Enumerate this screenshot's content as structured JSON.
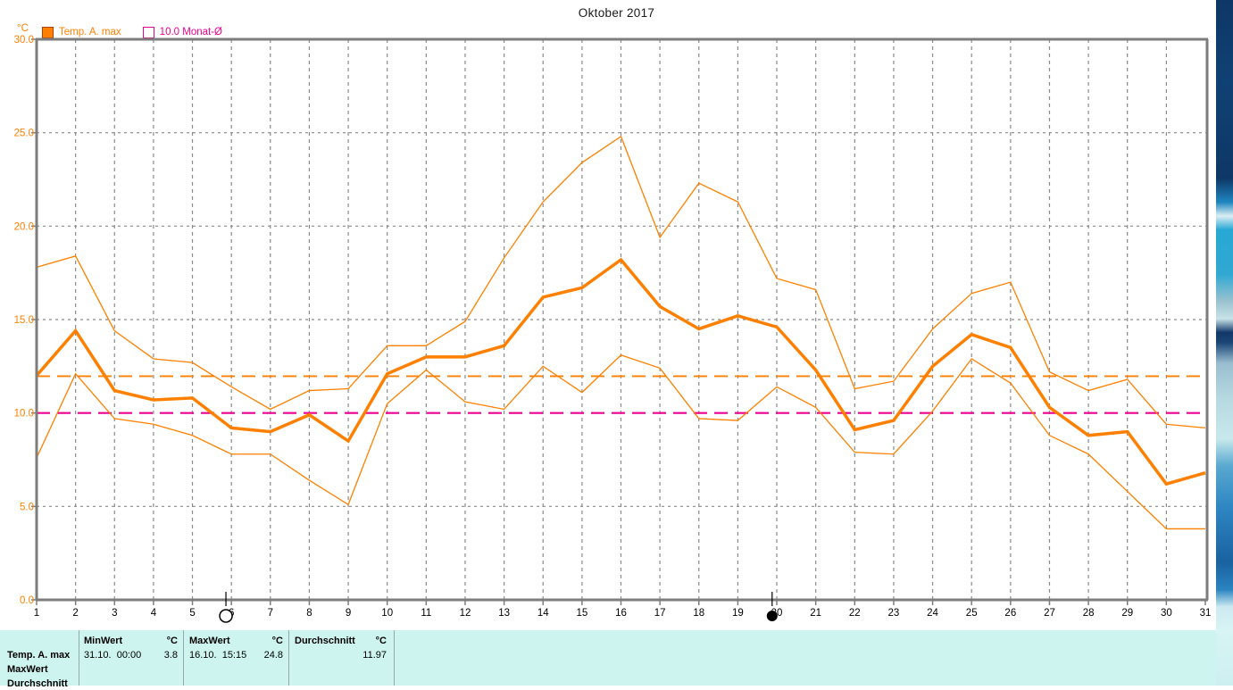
{
  "title": "Oktober 2017",
  "legend": {
    "unit_label": "°C",
    "series1": {
      "label": "Temp. A. max",
      "color": "#ff8000"
    },
    "series2": {
      "label": "10.0 Monat-Ø",
      "color": "#ec0090"
    }
  },
  "chart_data": {
    "type": "line",
    "title": "Oktober 2017",
    "ylabel": "°C",
    "ylim": [
      0,
      30
    ],
    "grid": true,
    "yticks": [
      30,
      25,
      20,
      15,
      10,
      5,
      0
    ],
    "ytick_labels": [
      "30.0",
      "25.0",
      "20.0",
      "15.0",
      "10.0",
      "5.0",
      "0.0"
    ],
    "x": [
      1,
      2,
      3,
      4,
      5,
      6,
      7,
      8,
      9,
      10,
      11,
      12,
      13,
      14,
      15,
      16,
      17,
      18,
      19,
      20,
      21,
      22,
      23,
      24,
      25,
      26,
      27,
      28,
      29,
      30,
      31
    ],
    "series": [
      {
        "name": "daily-max",
        "color": "#ff8000",
        "width": 1.3,
        "values": [
          17.8,
          18.4,
          14.4,
          12.9,
          12.7,
          11.4,
          10.2,
          11.2,
          11.3,
          13.6,
          13.6,
          14.9,
          18.3,
          21.3,
          23.4,
          24.8,
          19.4,
          22.3,
          21.3,
          17.2,
          16.6,
          11.3,
          11.7,
          14.5,
          16.4,
          17.0,
          12.2,
          11.2,
          11.8,
          9.4,
          9.2
        ]
      },
      {
        "name": "temp-a-max-mean",
        "color": "#ff8000",
        "width": 3.5,
        "values": [
          12.0,
          14.4,
          11.2,
          10.7,
          10.8,
          9.2,
          9.0,
          9.9,
          8.5,
          12.1,
          13.0,
          13.0,
          13.6,
          16.2,
          16.7,
          18.2,
          15.7,
          14.5,
          15.2,
          14.6,
          12.3,
          9.1,
          9.6,
          12.5,
          14.2,
          13.5,
          10.3,
          8.8,
          9.0,
          6.2,
          6.8
        ]
      },
      {
        "name": "daily-min",
        "color": "#ff8000",
        "width": 1.3,
        "values": [
          7.6,
          12.1,
          9.7,
          9.4,
          8.8,
          7.8,
          7.8,
          6.4,
          5.1,
          10.5,
          12.3,
          10.6,
          10.2,
          12.5,
          11.1,
          13.1,
          12.4,
          9.7,
          9.6,
          11.4,
          10.3,
          7.9,
          7.8,
          10.1,
          12.9,
          11.6,
          8.8,
          7.8,
          5.8,
          3.8,
          3.8
        ]
      }
    ],
    "reference_lines": [
      {
        "name": "monats-durchschnitt",
        "value": 11.97,
        "color": "#ff8000",
        "width": 1.8
      },
      {
        "name": "10.0-monat-soll",
        "value": 10.0,
        "color": "#ec0090",
        "width": 2.2
      }
    ],
    "moon_markers": [
      {
        "day": 5.86,
        "phase": "full-moon"
      },
      {
        "day": 19.88,
        "phase": "new-moon"
      }
    ]
  },
  "stats_table": {
    "col1_header": "MinWert",
    "col1_unit": "°C",
    "col2_header": "MaxWert",
    "col2_unit": "°C",
    "col3_header": "Durchschnitt",
    "col3_unit": "°C",
    "row1": {
      "label": "Temp. A. max",
      "min_time": "31.10.  00:00",
      "min_value": "3.8",
      "max_time": "16.10.  15:15",
      "max_value": "24.8",
      "avg_value": "11.97"
    },
    "row2_label": "MaxWert",
    "row3_label": "Durchschnitt"
  }
}
